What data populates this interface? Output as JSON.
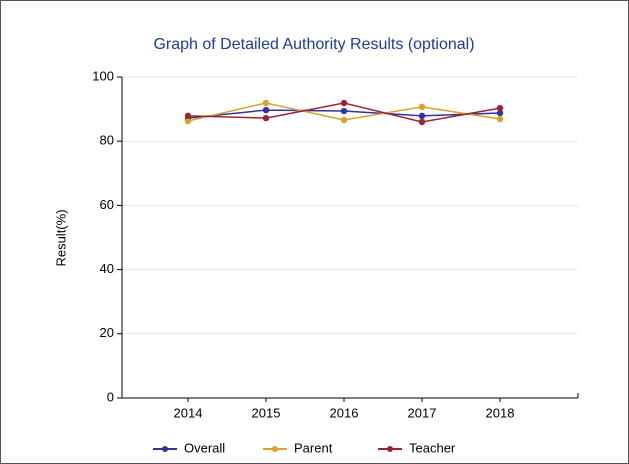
{
  "chart_data": {
    "type": "line",
    "title": "Graph of Detailed Authority Results (optional)",
    "y_label": "Result(%)",
    "categories": [
      "2014",
      "2015",
      "2016",
      "2017",
      "2018"
    ],
    "series": [
      {
        "name": "Overall",
        "color": "#33339a",
        "values": [
          87.2,
          89.7,
          89.4,
          87.9,
          88.8
        ]
      },
      {
        "name": "Parent",
        "color": "#d9a32c",
        "values": [
          86.3,
          91.9,
          86.6,
          90.7,
          86.9
        ]
      },
      {
        "name": "Teacher",
        "color": "#9b2335",
        "values": [
          87.9,
          87.2,
          91.9,
          86.0,
          90.3
        ]
      }
    ],
    "ylim": [
      0,
      100
    ],
    "yticks": [
      0,
      20,
      40,
      60,
      80,
      100
    ],
    "grid": true,
    "legend": "bottom"
  }
}
